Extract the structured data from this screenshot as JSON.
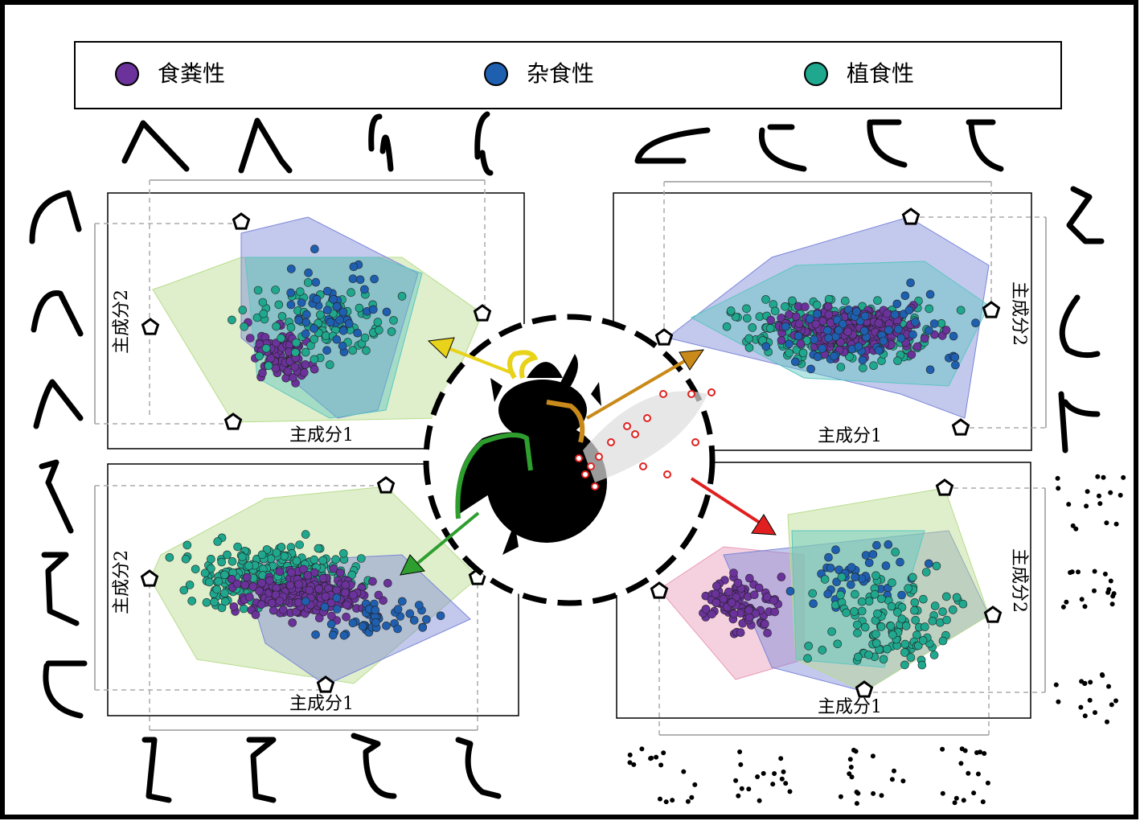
{
  "legend": {
    "items": [
      {
        "label": "食粪性",
        "color": "#6a329a"
      },
      {
        "label": "杂食性",
        "color": "#1f5fb0"
      },
      {
        "label": "植食性",
        "color": "#1fa88e"
      }
    ]
  },
  "panels": [
    {
      "x_label": "主成分1",
      "y_label": "主成分2"
    },
    {
      "x_label": "主成分1",
      "y_label": "主成分2"
    },
    {
      "x_label": "主成分1",
      "y_label": "主成分2"
    },
    {
      "x_label": "主成分1",
      "y_label": "主成分2"
    }
  ]
}
